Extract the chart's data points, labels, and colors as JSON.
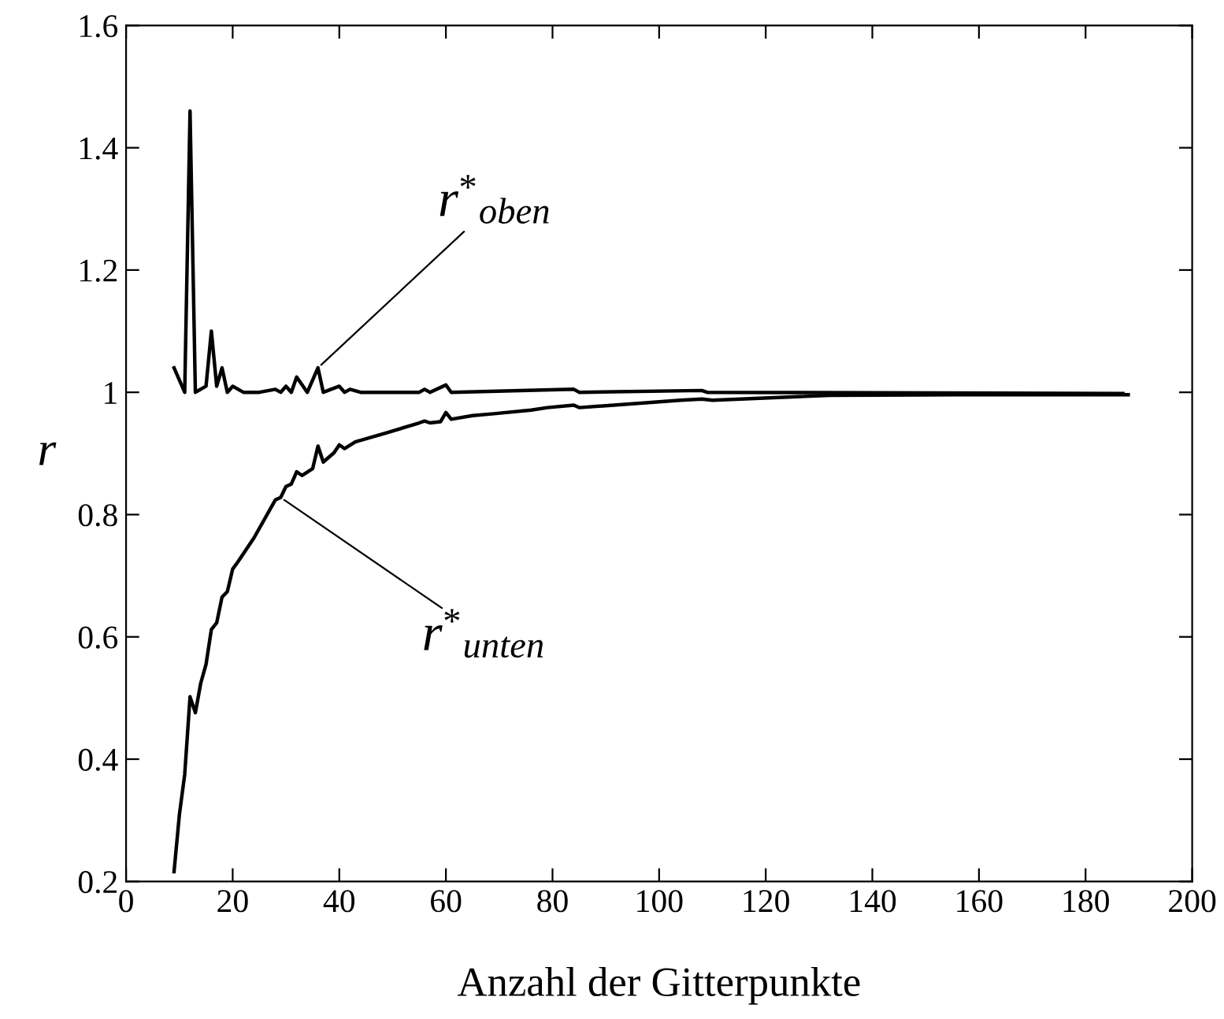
{
  "chart_data": {
    "type": "line",
    "xlabel": "Anzahl der Gitterpunkte",
    "ylabel": "r",
    "xlim": [
      0,
      200
    ],
    "xticks": [
      0,
      20,
      40,
      60,
      80,
      100,
      120,
      140,
      160,
      180,
      200
    ],
    "ylim": [
      0.2,
      1.6
    ],
    "yticks": [
      0.2,
      0.4,
      0.6,
      0.8,
      1,
      1.2,
      1.4,
      1.6
    ],
    "grid": false,
    "legend": false,
    "marker": "none",
    "line_style": "solid",
    "series": [
      {
        "color": "#000000",
        "x": [
          9,
          11,
          12,
          13,
          15,
          16,
          17,
          18,
          19,
          20,
          22,
          25,
          28,
          29,
          30,
          31,
          32,
          34,
          36,
          37,
          40,
          41,
          42,
          44,
          55,
          56,
          57,
          60,
          61,
          84,
          85,
          108,
          109,
          187
        ],
        "values": [
          1.04,
          1.0,
          1.46,
          1.0,
          1.01,
          1.1,
          1.01,
          1.04,
          1.0,
          1.01,
          1.0,
          1.0,
          1.005,
          1.0,
          1.01,
          1.0,
          1.025,
          1.0,
          1.04,
          1.0,
          1.01,
          1.0,
          1.005,
          1.0,
          1.0,
          1.005,
          1.0,
          1.012,
          1.0,
          1.005,
          1.0,
          1.003,
          1.0,
          0.998
        ]
      },
      {
        "color": "#000000",
        "x": [
          9,
          10,
          11,
          12,
          13,
          14,
          15,
          16,
          17,
          18,
          19,
          20,
          21,
          24,
          28,
          29,
          30,
          31,
          32,
          33,
          35,
          36,
          37,
          39,
          40,
          41,
          43,
          49,
          55,
          56,
          57,
          59,
          60,
          61,
          65,
          69,
          76,
          79,
          84,
          85,
          104,
          108,
          110,
          132,
          156,
          188
        ],
        "values": [
          0.216,
          0.309,
          0.375,
          0.502,
          0.476,
          0.524,
          0.555,
          0.612,
          0.623,
          0.665,
          0.674,
          0.711,
          0.723,
          0.762,
          0.824,
          0.828,
          0.846,
          0.85,
          0.87,
          0.864,
          0.875,
          0.912,
          0.886,
          0.901,
          0.914,
          0.908,
          0.919,
          0.934,
          0.95,
          0.953,
          0.95,
          0.952,
          0.967,
          0.956,
          0.962,
          0.965,
          0.971,
          0.975,
          0.979,
          0.975,
          0.987,
          0.989,
          0.987,
          0.995,
          0.996,
          0.996
        ]
      }
    ],
    "annotations": [
      {
        "text": "r$^{*}$$_{oben}$",
        "x": 36,
        "y": 1.04
      },
      {
        "text": "r$^{*}$$_{unten}$",
        "x": 29,
        "y": 0.828
      }
    ]
  }
}
